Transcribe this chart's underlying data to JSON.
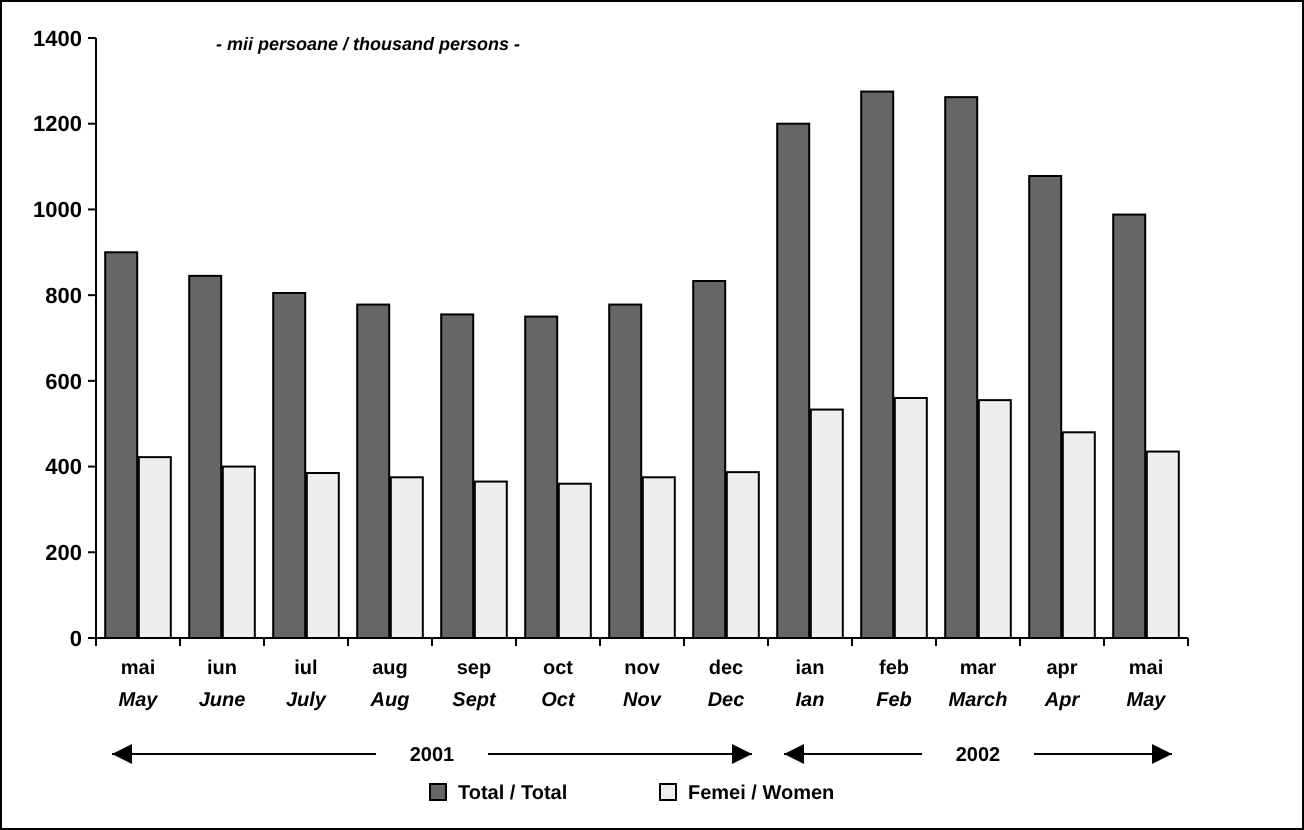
{
  "chart_data": {
    "type": "bar",
    "title": "- mii persoane / thousand persons -",
    "categories": [
      "mai\nMay",
      "iun\nJune",
      "iul\nJuly",
      "aug\nAug",
      "sep\nSept",
      "oct\nOct",
      "nov\nNov",
      "dec\nDec",
      "ian\nIan",
      "feb\nFeb",
      "mar\nMarch",
      "apr\nApr",
      "mai\nMay"
    ],
    "series": [
      {
        "name": "Total / Total",
        "color": "#666666",
        "values": [
          900,
          845,
          805,
          778,
          755,
          750,
          778,
          833,
          1200,
          1275,
          1262,
          1078,
          988
        ]
      },
      {
        "name": "Femei / Women",
        "color": "#eeeeee",
        "values": [
          422,
          400,
          385,
          375,
          365,
          360,
          375,
          387,
          533,
          560,
          555,
          480,
          435
        ]
      }
    ],
    "ylim": [
      0,
      1400
    ],
    "yticks": [
      0,
      200,
      400,
      600,
      800,
      1000,
      1200,
      1400
    ],
    "grid": false,
    "legend": "bottom",
    "annotations": [
      "2001",
      "2002"
    ]
  }
}
